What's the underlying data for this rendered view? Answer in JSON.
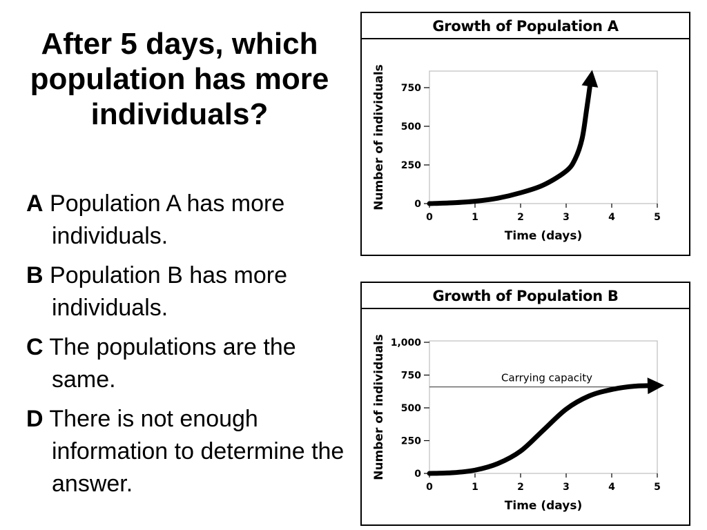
{
  "question": "After 5 days, which population has more individuals?",
  "answers": [
    {
      "letter": "A",
      "text": "Population A has more individuals."
    },
    {
      "letter": "B",
      "text": "Population B has more individuals."
    },
    {
      "letter": "C",
      "text": "The populations are the same."
    },
    {
      "letter": "D",
      "text": "There is not enough information to determine the answer."
    }
  ],
  "chart_data": [
    {
      "type": "line",
      "title": "Growth of Population A",
      "xlabel": "Time (days)",
      "ylabel": "Number of individuals",
      "xlim": [
        0,
        5
      ],
      "ylim": [
        0,
        850
      ],
      "x_ticks": [
        "0",
        "1",
        "2",
        "3",
        "4",
        "5"
      ],
      "y_ticks": [
        "0",
        "250",
        "500",
        "750"
      ],
      "series": [
        {
          "x": [
            0,
            0.5,
            1,
            1.5,
            2,
            2.5,
            3,
            3.2,
            3.35,
            3.45,
            3.55
          ],
          "y": [
            0,
            5,
            15,
            35,
            70,
            120,
            210,
            290,
            420,
            610,
            820
          ]
        }
      ],
      "grid": false
    },
    {
      "type": "line",
      "title": "Growth of Population B",
      "xlabel": "Time (days)",
      "ylabel": "Number of individuals",
      "xlim": [
        0,
        5
      ],
      "ylim": [
        0,
        1000
      ],
      "x_ticks": [
        "0",
        "1",
        "2",
        "3",
        "4",
        "5"
      ],
      "y_ticks": [
        "0",
        "250",
        "500",
        "750",
        "1,000"
      ],
      "annotation": {
        "label": "Carrying capacity",
        "y": 660
      },
      "series": [
        {
          "x": [
            0,
            0.5,
            1,
            1.5,
            2,
            2.5,
            3,
            3.5,
            4,
            4.5,
            5
          ],
          "y": [
            0,
            5,
            25,
            75,
            170,
            330,
            490,
            590,
            640,
            665,
            670
          ]
        }
      ],
      "grid": false
    }
  ]
}
